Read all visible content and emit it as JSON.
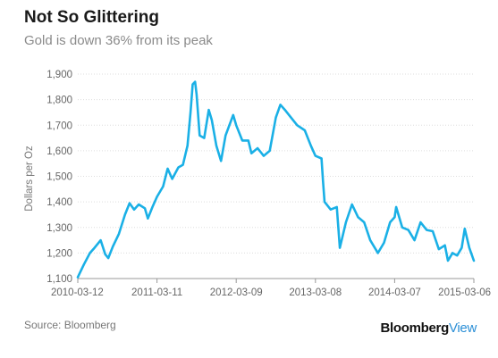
{
  "header": {
    "title": "Not So Glittering",
    "subtitle": "Gold is down 36% from its peak"
  },
  "footer": {
    "source": "Source: Bloomberg",
    "brand_main": "Bloomberg",
    "brand_accent": "View"
  },
  "colors": {
    "line": "#1ab0e6",
    "grid": "#dddddd",
    "axis": "#999999",
    "brand_accent": "#2b8fd6"
  },
  "chart_data": {
    "type": "line",
    "title": "Not So Glittering",
    "subtitle": "Gold is down 36% from its peak",
    "xlabel": "",
    "ylabel": "Dollars per Oz",
    "ylim": [
      1100,
      1900
    ],
    "yticks": [
      1100,
      1200,
      1300,
      1400,
      1500,
      1600,
      1700,
      1800,
      1900
    ],
    "ytick_labels": [
      "1,100",
      "1,200",
      "1,300",
      "1,400",
      "1,500",
      "1,600",
      "1,700",
      "1,800",
      "1,900"
    ],
    "xlim": [
      "2010-03-12",
      "2015-03-06"
    ],
    "xticks": [
      "2010-03-12",
      "2011-03-11",
      "2012-03-09",
      "2013-03-08",
      "2014-03-07",
      "2015-03-06"
    ],
    "grid": "horizontal",
    "series": [
      {
        "color": "#1ab0e6",
        "x": [
          "2010-03-12",
          "2010-04-09",
          "2010-05-07",
          "2010-05-28",
          "2010-06-25",
          "2010-07-16",
          "2010-07-30",
          "2010-08-20",
          "2010-09-17",
          "2010-10-15",
          "2010-11-05",
          "2010-11-26",
          "2010-12-17",
          "2011-01-14",
          "2011-01-28",
          "2011-02-18",
          "2011-03-11",
          "2011-04-08",
          "2011-04-29",
          "2011-05-20",
          "2011-06-17",
          "2011-07-08",
          "2011-07-29",
          "2011-08-12",
          "2011-08-22",
          "2011-09-02",
          "2011-09-09",
          "2011-09-23",
          "2011-10-14",
          "2011-11-04",
          "2011-11-18",
          "2011-12-09",
          "2011-12-30",
          "2012-01-20",
          "2012-02-24",
          "2012-03-09",
          "2012-04-06",
          "2012-05-04",
          "2012-05-18",
          "2012-06-15",
          "2012-07-13",
          "2012-08-10",
          "2012-09-07",
          "2012-09-28",
          "2012-10-19",
          "2012-11-16",
          "2012-12-14",
          "2013-01-18",
          "2013-02-15",
          "2013-03-08",
          "2013-04-05",
          "2013-04-12",
          "2013-04-19",
          "2013-05-17",
          "2013-06-14",
          "2013-06-28",
          "2013-07-26",
          "2013-08-23",
          "2013-09-20",
          "2013-10-18",
          "2013-11-15",
          "2013-12-20",
          "2014-01-17",
          "2014-02-14",
          "2014-03-07",
          "2014-03-14",
          "2014-04-11",
          "2014-05-09",
          "2014-06-06",
          "2014-07-04",
          "2014-08-01",
          "2014-08-29",
          "2014-09-26",
          "2014-10-24",
          "2014-11-07",
          "2014-11-28",
          "2014-12-19",
          "2015-01-09",
          "2015-01-23",
          "2015-02-13",
          "2015-03-06"
        ],
        "y": [
          1105,
          1155,
          1200,
          1220,
          1250,
          1195,
          1180,
          1225,
          1275,
          1350,
          1395,
          1370,
          1390,
          1375,
          1335,
          1380,
          1420,
          1460,
          1530,
          1490,
          1535,
          1545,
          1620,
          1750,
          1860,
          1870,
          1820,
          1660,
          1650,
          1760,
          1720,
          1620,
          1560,
          1660,
          1740,
          1700,
          1640,
          1640,
          1590,
          1610,
          1580,
          1600,
          1730,
          1780,
          1760,
          1730,
          1700,
          1680,
          1620,
          1580,
          1570,
          1480,
          1400,
          1370,
          1380,
          1220,
          1320,
          1390,
          1340,
          1320,
          1250,
          1200,
          1240,
          1320,
          1340,
          1380,
          1300,
          1290,
          1250,
          1320,
          1290,
          1285,
          1215,
          1230,
          1170,
          1200,
          1190,
          1220,
          1295,
          1220,
          1170
        ]
      }
    ]
  }
}
